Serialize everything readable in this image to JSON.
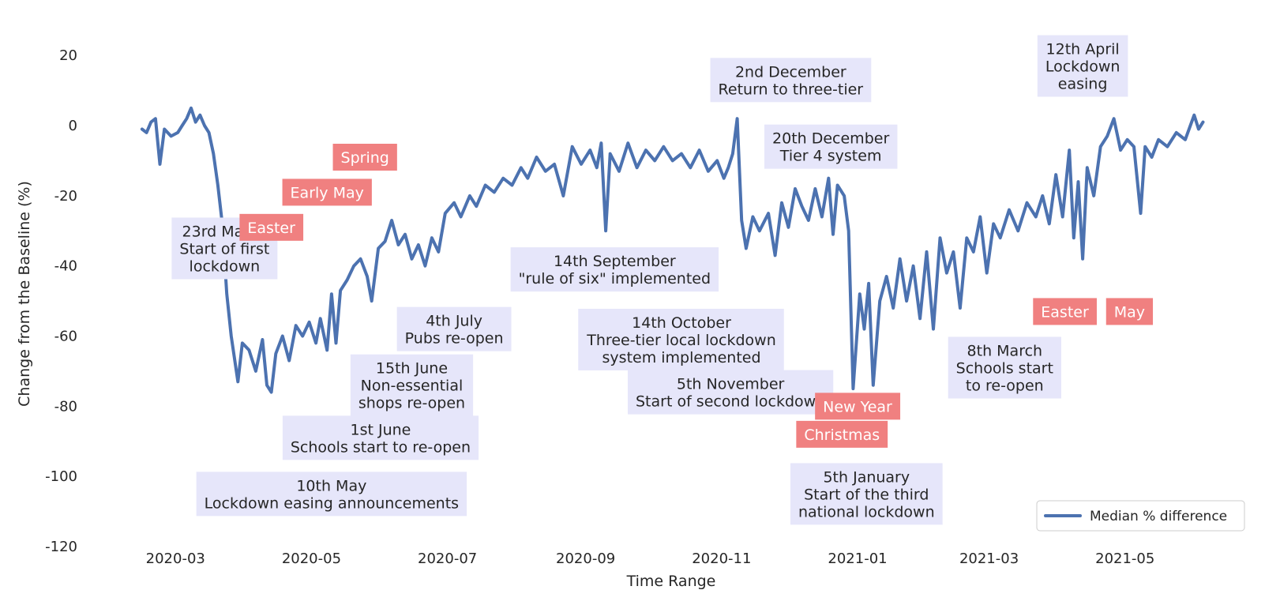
{
  "chart_data": {
    "type": "line",
    "title": "",
    "xlabel": "Time Range",
    "ylabel": "Change from the Baseline (%)",
    "ylim": [
      -120,
      25
    ],
    "xlim": [
      "2020-01-23",
      "2021-06-25"
    ],
    "grid": false,
    "legend_position": "bottom-right",
    "line_color": "#4c72b0",
    "annotation_box_color": "#e6e6fa",
    "holiday_box_color": "#f08080",
    "y_ticks": [
      20,
      0,
      -20,
      -40,
      -60,
      -80,
      -100,
      -120
    ],
    "x_ticks": [
      {
        "date": "2020-03-01",
        "label": "2020-03"
      },
      {
        "date": "2020-05-01",
        "label": "2020-05"
      },
      {
        "date": "2020-07-01",
        "label": "2020-07"
      },
      {
        "date": "2020-09-01",
        "label": "2020-09"
      },
      {
        "date": "2020-11-01",
        "label": "2020-11"
      },
      {
        "date": "2021-01-01",
        "label": "2021-01"
      },
      {
        "date": "2021-03-01",
        "label": "2021-03"
      },
      {
        "date": "2021-05-01",
        "label": "2021-05"
      }
    ],
    "series": [
      {
        "name": "Median % difference",
        "points": [
          [
            "2020-02-15",
            -1
          ],
          [
            "2020-02-17",
            -2
          ],
          [
            "2020-02-19",
            1
          ],
          [
            "2020-02-21",
            2
          ],
          [
            "2020-02-23",
            -11
          ],
          [
            "2020-02-25",
            -1
          ],
          [
            "2020-02-28",
            -3
          ],
          [
            "2020-03-02",
            -2
          ],
          [
            "2020-03-04",
            0
          ],
          [
            "2020-03-06",
            2
          ],
          [
            "2020-03-08",
            5
          ],
          [
            "2020-03-10",
            1
          ],
          [
            "2020-03-12",
            3
          ],
          [
            "2020-03-14",
            0
          ],
          [
            "2020-03-16",
            -2
          ],
          [
            "2020-03-18",
            -8
          ],
          [
            "2020-03-20",
            -17
          ],
          [
            "2020-03-22",
            -28
          ],
          [
            "2020-03-24",
            -48
          ],
          [
            "2020-03-26",
            -60
          ],
          [
            "2020-03-29",
            -73
          ],
          [
            "2020-03-31",
            -62
          ],
          [
            "2020-04-03",
            -64
          ],
          [
            "2020-04-06",
            -70
          ],
          [
            "2020-04-09",
            -61
          ],
          [
            "2020-04-11",
            -74
          ],
          [
            "2020-04-13",
            -76
          ],
          [
            "2020-04-15",
            -65
          ],
          [
            "2020-04-18",
            -60
          ],
          [
            "2020-04-21",
            -67
          ],
          [
            "2020-04-24",
            -57
          ],
          [
            "2020-04-27",
            -60
          ],
          [
            "2020-04-30",
            -56
          ],
          [
            "2020-05-03",
            -62
          ],
          [
            "2020-05-05",
            -55
          ],
          [
            "2020-05-08",
            -64
          ],
          [
            "2020-05-10",
            -48
          ],
          [
            "2020-05-12",
            -62
          ],
          [
            "2020-05-14",
            -47
          ],
          [
            "2020-05-17",
            -44
          ],
          [
            "2020-05-20",
            -40
          ],
          [
            "2020-05-23",
            -38
          ],
          [
            "2020-05-26",
            -43
          ],
          [
            "2020-05-28",
            -50
          ],
          [
            "2020-05-31",
            -35
          ],
          [
            "2020-06-03",
            -33
          ],
          [
            "2020-06-06",
            -27
          ],
          [
            "2020-06-09",
            -34
          ],
          [
            "2020-06-12",
            -31
          ],
          [
            "2020-06-15",
            -38
          ],
          [
            "2020-06-18",
            -34
          ],
          [
            "2020-06-21",
            -40
          ],
          [
            "2020-06-24",
            -32
          ],
          [
            "2020-06-27",
            -36
          ],
          [
            "2020-06-30",
            -25
          ],
          [
            "2020-07-04",
            -22
          ],
          [
            "2020-07-07",
            -26
          ],
          [
            "2020-07-11",
            -20
          ],
          [
            "2020-07-14",
            -23
          ],
          [
            "2020-07-18",
            -17
          ],
          [
            "2020-07-22",
            -19
          ],
          [
            "2020-07-26",
            -15
          ],
          [
            "2020-07-30",
            -17
          ],
          [
            "2020-08-03",
            -12
          ],
          [
            "2020-08-06",
            -15
          ],
          [
            "2020-08-10",
            -9
          ],
          [
            "2020-08-14",
            -13
          ],
          [
            "2020-08-18",
            -11
          ],
          [
            "2020-08-22",
            -20
          ],
          [
            "2020-08-26",
            -6
          ],
          [
            "2020-08-30",
            -11
          ],
          [
            "2020-09-03",
            -7
          ],
          [
            "2020-09-06",
            -12
          ],
          [
            "2020-09-08",
            -5
          ],
          [
            "2020-09-10",
            -30
          ],
          [
            "2020-09-12",
            -8
          ],
          [
            "2020-09-16",
            -13
          ],
          [
            "2020-09-20",
            -5
          ],
          [
            "2020-09-24",
            -12
          ],
          [
            "2020-09-28",
            -7
          ],
          [
            "2020-10-02",
            -10
          ],
          [
            "2020-10-06",
            -6
          ],
          [
            "2020-10-10",
            -10
          ],
          [
            "2020-10-14",
            -8
          ],
          [
            "2020-10-18",
            -12
          ],
          [
            "2020-10-22",
            -7
          ],
          [
            "2020-10-26",
            -13
          ],
          [
            "2020-10-30",
            -10
          ],
          [
            "2020-11-02",
            -15
          ],
          [
            "2020-11-04",
            -12
          ],
          [
            "2020-11-06",
            -8
          ],
          [
            "2020-11-08",
            2
          ],
          [
            "2020-11-10",
            -27
          ],
          [
            "2020-11-12",
            -35
          ],
          [
            "2020-11-15",
            -26
          ],
          [
            "2020-11-18",
            -30
          ],
          [
            "2020-11-22",
            -25
          ],
          [
            "2020-11-25",
            -37
          ],
          [
            "2020-11-28",
            -22
          ],
          [
            "2020-12-01",
            -29
          ],
          [
            "2020-12-04",
            -18
          ],
          [
            "2020-12-07",
            -23
          ],
          [
            "2020-12-10",
            -27
          ],
          [
            "2020-12-13",
            -18
          ],
          [
            "2020-12-16",
            -26
          ],
          [
            "2020-12-19",
            -15
          ],
          [
            "2020-12-21",
            -31
          ],
          [
            "2020-12-23",
            -17
          ],
          [
            "2020-12-26",
            -20
          ],
          [
            "2020-12-28",
            -30
          ],
          [
            "2020-12-30",
            -75
          ],
          [
            "2021-01-02",
            -48
          ],
          [
            "2021-01-04",
            -58
          ],
          [
            "2021-01-06",
            -45
          ],
          [
            "2021-01-08",
            -74
          ],
          [
            "2021-01-11",
            -50
          ],
          [
            "2021-01-14",
            -43
          ],
          [
            "2021-01-17",
            -52
          ],
          [
            "2021-01-20",
            -38
          ],
          [
            "2021-01-23",
            -50
          ],
          [
            "2021-01-26",
            -40
          ],
          [
            "2021-01-29",
            -55
          ],
          [
            "2021-02-01",
            -36
          ],
          [
            "2021-02-04",
            -58
          ],
          [
            "2021-02-07",
            -32
          ],
          [
            "2021-02-10",
            -42
          ],
          [
            "2021-02-13",
            -36
          ],
          [
            "2021-02-16",
            -52
          ],
          [
            "2021-02-19",
            -32
          ],
          [
            "2021-02-22",
            -36
          ],
          [
            "2021-02-25",
            -26
          ],
          [
            "2021-02-28",
            -42
          ],
          [
            "2021-03-03",
            -28
          ],
          [
            "2021-03-06",
            -32
          ],
          [
            "2021-03-10",
            -24
          ],
          [
            "2021-03-14",
            -30
          ],
          [
            "2021-03-18",
            -22
          ],
          [
            "2021-03-22",
            -26
          ],
          [
            "2021-03-25",
            -20
          ],
          [
            "2021-03-28",
            -28
          ],
          [
            "2021-03-31",
            -14
          ],
          [
            "2021-04-03",
            -26
          ],
          [
            "2021-04-06",
            -7
          ],
          [
            "2021-04-08",
            -32
          ],
          [
            "2021-04-10",
            -16
          ],
          [
            "2021-04-12",
            -38
          ],
          [
            "2021-04-14",
            -12
          ],
          [
            "2021-04-17",
            -20
          ],
          [
            "2021-04-20",
            -6
          ],
          [
            "2021-04-23",
            -3
          ],
          [
            "2021-04-26",
            2
          ],
          [
            "2021-04-29",
            -7
          ],
          [
            "2021-05-02",
            -4
          ],
          [
            "2021-05-05",
            -6
          ],
          [
            "2021-05-08",
            -25
          ],
          [
            "2021-05-10",
            -6
          ],
          [
            "2021-05-13",
            -9
          ],
          [
            "2021-05-16",
            -4
          ],
          [
            "2021-05-20",
            -6
          ],
          [
            "2021-05-24",
            -2
          ],
          [
            "2021-05-28",
            -4
          ],
          [
            "2021-06-01",
            3
          ],
          [
            "2021-06-03",
            -1
          ],
          [
            "2021-06-05",
            1
          ]
        ]
      }
    ],
    "annotations": [
      {
        "lines": [
          "23rd March",
          "Start of first",
          "lockdown"
        ],
        "date": "2020-03-23",
        "y": -35
      },
      {
        "lines": [
          "10th May",
          "Lockdown easing announcements"
        ],
        "date": "2020-05-10",
        "y": -105
      },
      {
        "lines": [
          "1st June",
          "Schools start to re-open"
        ],
        "date": "2020-06-01",
        "y": -89
      },
      {
        "lines": [
          "15th June",
          "Non-essential",
          "shops re-open"
        ],
        "date": "2020-06-15",
        "y": -74
      },
      {
        "lines": [
          "4th July",
          "Pubs re-open"
        ],
        "date": "2020-07-04",
        "y": -58
      },
      {
        "lines": [
          "14th September",
          "\"rule of six\" implemented"
        ],
        "date": "2020-09-14",
        "y": -41
      },
      {
        "lines": [
          "14th October",
          "Three-tier local lockdown",
          "system implemented"
        ],
        "date": "2020-10-14",
        "y": -61
      },
      {
        "lines": [
          "5th November",
          "Start of second lockdown"
        ],
        "date": "2020-11-05",
        "y": -76
      },
      {
        "lines": [
          "2nd December",
          "Return to three-tier"
        ],
        "date": "2020-12-02",
        "y": 13
      },
      {
        "lines": [
          "20th December",
          "Tier 4 system"
        ],
        "date": "2020-12-20",
        "y": -6
      },
      {
        "lines": [
          "5th January",
          "Start of the third",
          "national lockdown"
        ],
        "date": "2021-01-05",
        "y": -105
      },
      {
        "lines": [
          "8th March",
          "Schools start",
          "to re-open"
        ],
        "date": "2021-03-08",
        "y": -69
      },
      {
        "lines": [
          "12th April",
          "Lockdown",
          "easing"
        ],
        "date": "2021-04-12",
        "y": 17
      }
    ],
    "holidays": [
      {
        "label": "Spring",
        "date": "2020-05-25",
        "y": -9
      },
      {
        "label": "Early May",
        "date": "2020-05-08",
        "y": -19
      },
      {
        "label": "Easter",
        "date": "2020-04-13",
        "y": -29
      },
      {
        "label": "Christmas",
        "date": "2020-12-25",
        "y": -88
      },
      {
        "label": "New Year",
        "date": "2021-01-01",
        "y": -80
      },
      {
        "label": "Easter",
        "date": "2021-04-04",
        "y": -53
      },
      {
        "label": "May",
        "date": "2021-05-03",
        "y": -53
      }
    ],
    "legend": {
      "label": "Median % difference"
    }
  }
}
